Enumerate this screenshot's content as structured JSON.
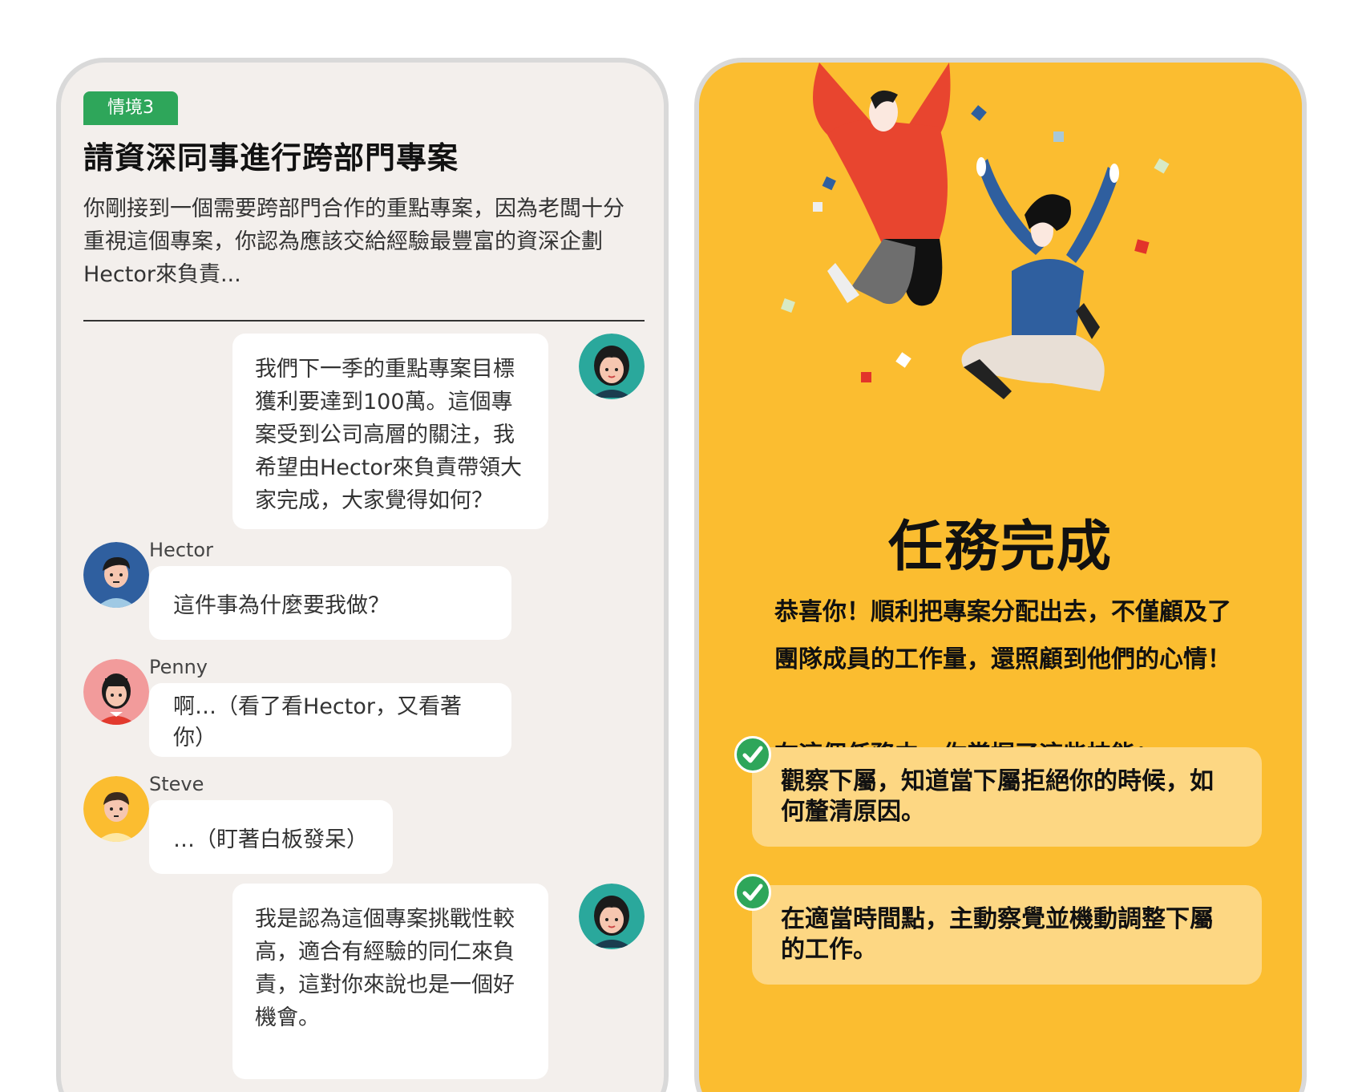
{
  "scenario": {
    "tag": "情境3",
    "title": "請資深同事進行跨部門專案",
    "description": "你剛接到一個需要跨部門合作的重點專案，因為老闆十分重視這個專案，你認為應該交給經驗最豐富的資深企劃Hector來負責..."
  },
  "chat": {
    "message_1": "我們下一季的重點專案目標獲利要達到100萬。這個專案受到公司高層的關注，我希望由Hector來負責帶領大家完成，大家覺得如何？",
    "hector_name": "Hector",
    "hector_message": "這件事為什麼要我做？",
    "penny_name": "Penny",
    "penny_message": "啊…（看了看Hector，又看著你）",
    "steve_name": "Steve",
    "steve_message": "…（盯著白板發呆）",
    "message_2": "我是認為這個專案挑戰性較高，適合有經驗的同仁來負責，這對你來說也是一個好機會。"
  },
  "result": {
    "title": "任務完成",
    "congrats": "恭喜你！順利把專案分配出去，不僅顧及了團隊成員的工作量，還照顧到他們的心情！",
    "skills_intro": "在這個任務中，你掌握了這些技能：",
    "skills": [
      "觀察下屬，知道當下屬拒絕你的時候，如何釐清原因。",
      "在適當時間點，主動察覺並機動調整下屬的工作。"
    ]
  },
  "colors": {
    "tag_green": "#2ea65a",
    "result_bg": "#fbbd30",
    "skill_card": "#fdd783",
    "chat_bg": "#f3efec"
  },
  "icons": {
    "me_avatar": "woman-avatar-icon",
    "hector_avatar": "hector-avatar-icon",
    "penny_avatar": "penny-avatar-icon",
    "steve_avatar": "steve-avatar-icon",
    "check": "check-icon"
  }
}
